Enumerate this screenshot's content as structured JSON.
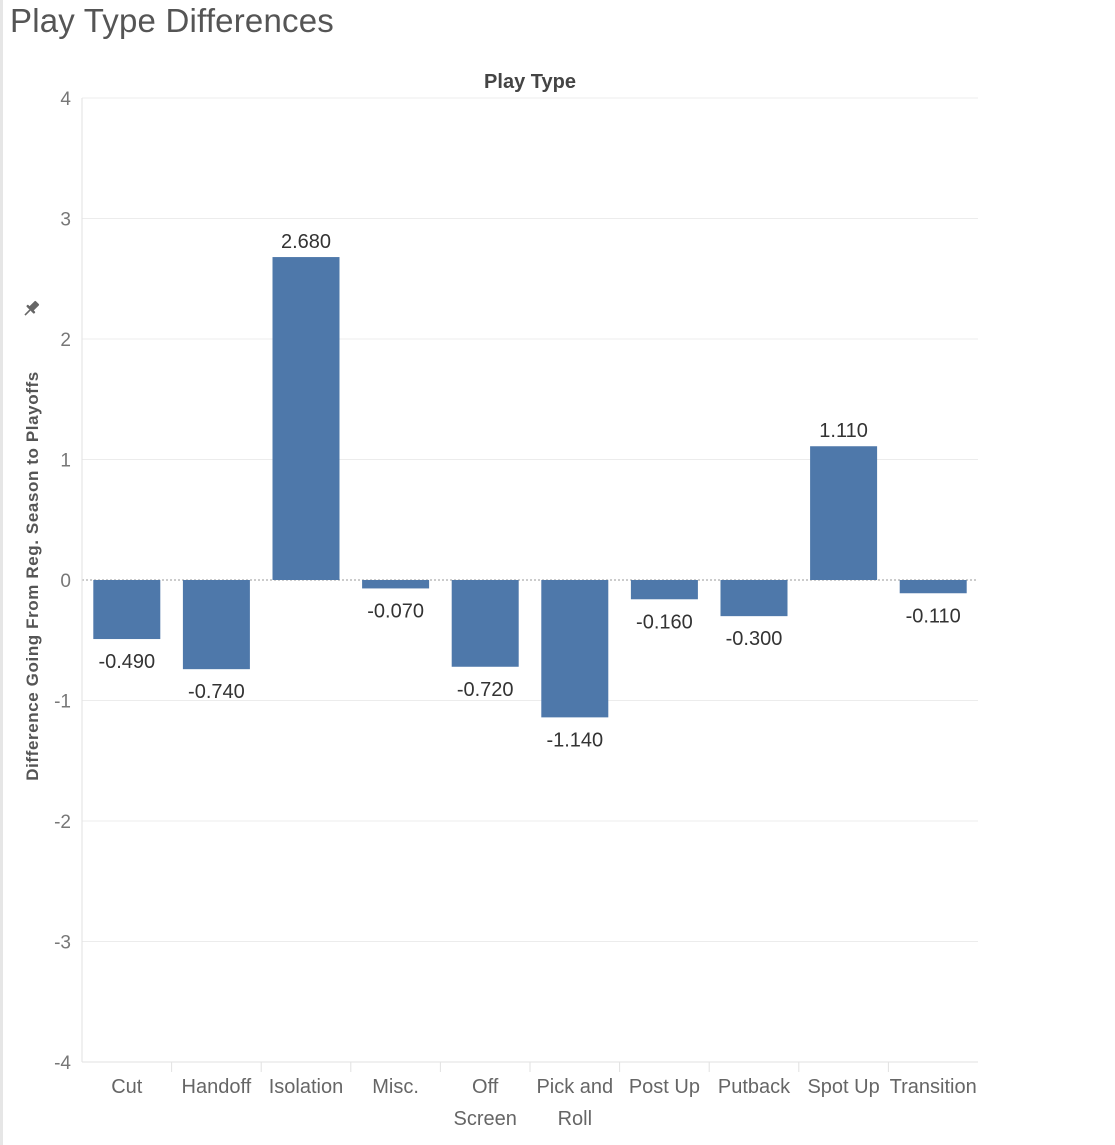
{
  "page": {
    "title": "Play Type Differences"
  },
  "chart_data": {
    "type": "bar",
    "title": "Play Type Differences",
    "xlabel": "Play Type",
    "xlabel_position": "top",
    "ylabel": "Difference Going From Reg. Season to Playoffs",
    "ylim": [
      -4,
      4
    ],
    "yticks": [
      4,
      3,
      2,
      1,
      0,
      -1,
      -2,
      -3,
      -4
    ],
    "grid": true,
    "bar_color": "#4e78aa",
    "categories": [
      "Cut",
      "Handoff",
      "Isolation",
      "Misc.",
      "Off Screen",
      "Pick and Roll",
      "Post Up",
      "Putback",
      "Spot Up",
      "Transition"
    ],
    "category_lines": [
      [
        "Cut"
      ],
      [
        "Handoff"
      ],
      [
        "Isolation"
      ],
      [
        "Misc."
      ],
      [
        "Off",
        "Screen"
      ],
      [
        "Pick and",
        "Roll"
      ],
      [
        "Post Up"
      ],
      [
        "Putback"
      ],
      [
        "Spot Up"
      ],
      [
        "Transition"
      ]
    ],
    "values": [
      -0.49,
      -0.74,
      2.68,
      -0.07,
      -0.72,
      -1.14,
      -0.16,
      -0.3,
      1.11,
      -0.11
    ],
    "value_labels": [
      "-0.490",
      "-0.740",
      "2.680",
      "-0.070",
      "-0.720",
      "-1.140",
      "-0.160",
      "-0.300",
      "1.110",
      "-0.110"
    ]
  },
  "icons": {
    "axis_pin": "pin-icon"
  }
}
